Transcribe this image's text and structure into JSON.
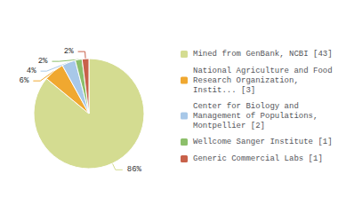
{
  "chart_data": {
    "type": "pie",
    "categories": [
      "Mined from GenBank, NCBI [43]",
      "National Agriculture and Food\nResearch Organization,\nInstit... [3]",
      "Center for Biology and\nManagement of Populations,\nMontpellier [2]",
      "Wellcome Sanger Institute [1]",
      "Generic Commercial Labs [1]"
    ],
    "values": [
      86,
      6,
      4,
      2,
      2
    ],
    "value_labels": [
      "86%",
      "6%",
      "4%",
      "2%",
      "2%"
    ],
    "colors": [
      "#d4dc91",
      "#f0a830",
      "#a8c8e8",
      "#8cbf6a",
      "#c8614a"
    ],
    "data_labels": true,
    "legend": "right"
  }
}
